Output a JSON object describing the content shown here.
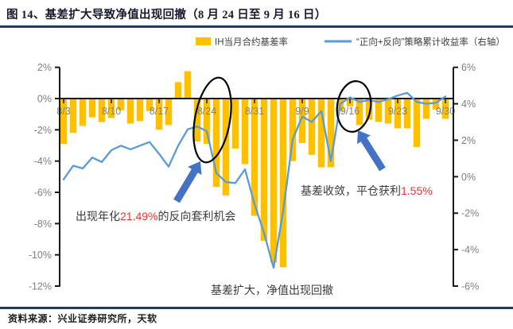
{
  "figure": {
    "title": "图 14、基差扩大导致净值出现回撤（8 月 24 日至 9 月 16 日）",
    "source": "资料来源：兴业证券研究所，天软"
  },
  "colors": {
    "bar": "#FFC000",
    "line": "#5B9BD5",
    "arrow": "#4472C4",
    "highlight_red": "#E8372C",
    "annotation_text": "#3B3B3B",
    "axis_line": "#1a1a1a",
    "axis_label": "#7F7F7F",
    "navy_rule": "#233a5c",
    "ellipse": "#000000"
  },
  "chart_data": {
    "type": "bar+line",
    "title": "图 14、基差扩大导致净值出现回撤（8 月 24 日至 9 月 16 日）",
    "legend": [
      {
        "label": "IH当月合约基差率",
        "marker": "bar",
        "color": "#FFC000"
      },
      {
        "label": "“正向+反向”策略累计收益率（右轴）",
        "marker": "line",
        "color": "#5B9BD5"
      }
    ],
    "legend_position": "top",
    "grid": false,
    "x_tick_labels": [
      "8/3",
      "8/10",
      "8/17",
      "8/24",
      "8/31",
      "9/9",
      "9/16",
      "9/23",
      "9/30"
    ],
    "x_tick_day_index": [
      0,
      5,
      10,
      15,
      20,
      25,
      30,
      35,
      40
    ],
    "left_axis": {
      "tick_labels": [
        "2%",
        "0%",
        "-2%",
        "-4%",
        "-6%",
        "-8%",
        "-10%",
        "-12%"
      ],
      "max": 2,
      "min": -12,
      "unit": "%"
    },
    "right_axis": {
      "tick_labels": [
        "6%",
        "4%",
        "2%",
        "0%",
        "-2%",
        "-4%",
        "-6%"
      ],
      "max": 6,
      "min": -6,
      "unit": "%"
    },
    "x": [
      "8/3",
      "8/4",
      "8/5",
      "8/6",
      "8/7",
      "8/10",
      "8/11",
      "8/12",
      "8/13",
      "8/14",
      "8/17",
      "8/18",
      "8/19",
      "8/20",
      "8/21",
      "8/24",
      "8/25",
      "8/26",
      "8/27",
      "8/28",
      "8/31",
      "9/1",
      "9/2",
      "9/7",
      "9/8",
      "9/9",
      "9/10",
      "9/11",
      "9/14",
      "9/15",
      "9/16",
      "9/17",
      "9/18",
      "9/21",
      "9/22",
      "9/23",
      "9/24",
      "9/25",
      "9/28",
      "9/29",
      "9/30"
    ],
    "series": [
      {
        "name": "IH当月合约基差率",
        "type": "bar",
        "axis": "left",
        "values": [
          -2.9,
          -2.2,
          -1.75,
          -1.2,
          -1.5,
          -1.25,
          -0.75,
          -1.6,
          -1.45,
          -0.8,
          -2.0,
          -1.7,
          1.05,
          1.75,
          -2.75,
          -2.9,
          -5.65,
          -6.2,
          -3.2,
          -4.2,
          -7.5,
          -9.1,
          -10.5,
          -10.8,
          -4.0,
          -2.85,
          -3.6,
          -4.4,
          -4.4,
          -0.8,
          -0.5,
          -1.7,
          -1.35,
          -1.5,
          -1.6,
          -1.9,
          -1.9,
          -3.1,
          -1.3,
          -0.7,
          -1.3
        ]
      },
      {
        "name": "“正向+反向”策略累计收益率（右轴）",
        "type": "line",
        "axis": "right",
        "values": [
          -0.15,
          0.6,
          0.45,
          1.05,
          0.8,
          1.45,
          1.7,
          1.5,
          1.7,
          1.9,
          1.25,
          0.55,
          1.7,
          2.6,
          2.75,
          2.5,
          0.2,
          -0.3,
          -0.35,
          0.4,
          -1.5,
          -3.1,
          -5.0,
          -1.9,
          2.05,
          3.3,
          3.0,
          3.6,
          0.85,
          4.0,
          4.35,
          4.1,
          4.2,
          4.1,
          4.25,
          4.45,
          4.6,
          4.1,
          4.0,
          4.05,
          4.4
        ]
      }
    ],
    "annotations": {
      "rev_arb": {
        "prefix": "出现年化",
        "highlight": "21.49%",
        "suffix": "的反向套利机会"
      },
      "close_profit": {
        "prefix": "基差收敛，平仓获利",
        "highlight": "1.55%",
        "suffix": ""
      },
      "drawdown": {
        "text": "基差扩大，净值出现回撤"
      },
      "circled_dates": [
        "8/24",
        "9/16"
      ]
    }
  }
}
